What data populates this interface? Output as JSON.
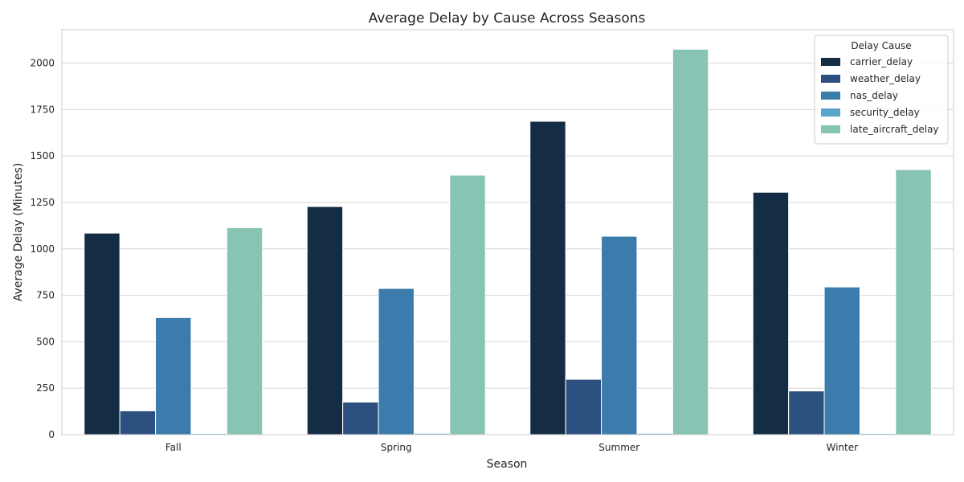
{
  "chart_data": {
    "type": "bar",
    "title": "Average Delay by Cause Across Seasons",
    "xlabel": "Season",
    "ylabel": "Average Delay (Minutes)",
    "categories": [
      "Fall",
      "Spring",
      "Summer",
      "Winter"
    ],
    "ylim": [
      0,
      2180
    ],
    "yticks": [
      0,
      250,
      500,
      750,
      1000,
      1250,
      1500,
      1750,
      2000
    ],
    "grid": "horizontal",
    "legend": {
      "title": "Delay Cause",
      "placement": "top-right"
    },
    "series": [
      {
        "name": "carrier_delay",
        "color": "#142d45",
        "values": [
          1085,
          1228,
          1687,
          1305
        ]
      },
      {
        "name": "weather_delay",
        "color": "#2c507f",
        "values": [
          128,
          175,
          298,
          235
        ]
      },
      {
        "name": "nas_delay",
        "color": "#3b7cad",
        "values": [
          630,
          787,
          1068,
          795
        ]
      },
      {
        "name": "security_delay",
        "color": "#57a4cd",
        "values": [
          6,
          7,
          7,
          6
        ]
      },
      {
        "name": "late_aircraft_delay",
        "color": "#88c4b4",
        "values": [
          1114,
          1397,
          2075,
          1427
        ]
      }
    ]
  }
}
